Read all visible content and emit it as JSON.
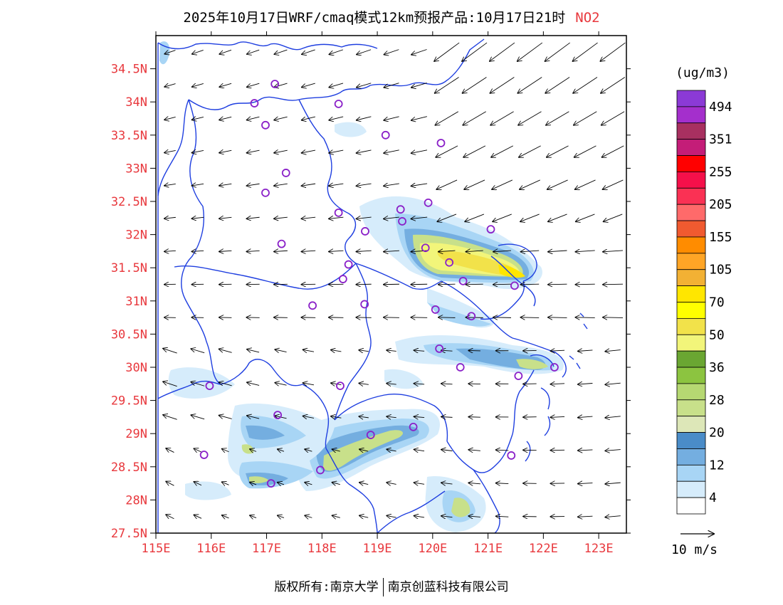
{
  "title": {
    "main": "2025年10月17日WRF/cmaq模式12km预报产品:10月17日21时",
    "pollutant": "NO2"
  },
  "axes": {
    "lat_labels": [
      "34.5N",
      "34N",
      "33.5N",
      "33N",
      "32.5N",
      "32N",
      "31.5N",
      "31N",
      "30.5N",
      "30N",
      "29.5N",
      "29N",
      "28.5N",
      "28N",
      "27.5N"
    ],
    "lon_labels": [
      "115E",
      "116E",
      "117E",
      "118E",
      "119E",
      "120E",
      "121E",
      "122E",
      "123E"
    ],
    "label_color": "#e8383d",
    "boundary_color": "#1f3fe0"
  },
  "colorbar": {
    "unit": "(ug/m3)",
    "labels": [
      "494",
      "351",
      "255",
      "205",
      "155",
      "105",
      "70",
      "50",
      "36",
      "28",
      "20",
      "12",
      "4"
    ],
    "colors": [
      "#8b3ad6",
      "#a42fcc",
      "#a83060",
      "#c41d78",
      "#ff0000",
      "#f5104a",
      "#fa3154",
      "#ff6a6a",
      "#f05a30",
      "#ff8c00",
      "#ffa526",
      "#f2b134",
      "#ffe600",
      "#ffff00",
      "#f2e24a",
      "#f2f57a",
      "#6aa632",
      "#8cc440",
      "#b6d872",
      "#c8e08a",
      "#dde7b8",
      "#4a8cc8",
      "#74aee0",
      "#a8d5f5",
      "#d6ecfb",
      "#ffffff"
    ]
  },
  "wind_legend": {
    "label": "10 m/s"
  },
  "footer": {
    "left": "版权所有:南京大学",
    "right": "南京创蓝科技有限公司"
  },
  "cities": [
    {
      "lon": 116.78,
      "lat": 33.98
    },
    {
      "lon": 117.15,
      "lat": 34.27
    },
    {
      "lon": 118.3,
      "lat": 33.97
    },
    {
      "lon": 116.98,
      "lat": 33.65
    },
    {
      "lon": 119.15,
      "lat": 33.5
    },
    {
      "lon": 120.15,
      "lat": 33.38
    },
    {
      "lon": 117.35,
      "lat": 32.93
    },
    {
      "lon": 116.98,
      "lat": 32.63
    },
    {
      "lon": 118.3,
      "lat": 32.33
    },
    {
      "lon": 119.42,
      "lat": 32.38
    },
    {
      "lon": 119.92,
      "lat": 32.48
    },
    {
      "lon": 119.45,
      "lat": 32.2
    },
    {
      "lon": 118.78,
      "lat": 32.05
    },
    {
      "lon": 121.05,
      "lat": 32.08
    },
    {
      "lon": 117.27,
      "lat": 31.86
    },
    {
      "lon": 119.87,
      "lat": 31.8
    },
    {
      "lon": 118.48,
      "lat": 31.55
    },
    {
      "lon": 120.3,
      "lat": 31.58
    },
    {
      "lon": 118.38,
      "lat": 31.33
    },
    {
      "lon": 120.55,
      "lat": 31.3
    },
    {
      "lon": 121.48,
      "lat": 31.23
    },
    {
      "lon": 117.83,
      "lat": 30.93
    },
    {
      "lon": 118.77,
      "lat": 30.95
    },
    {
      "lon": 120.05,
      "lat": 30.87
    },
    {
      "lon": 120.7,
      "lat": 30.77
    },
    {
      "lon": 120.12,
      "lat": 30.28
    },
    {
      "lon": 120.5,
      "lat": 30.0
    },
    {
      "lon": 121.55,
      "lat": 29.87
    },
    {
      "lon": 122.2,
      "lat": 30.0
    },
    {
      "lon": 115.97,
      "lat": 29.72
    },
    {
      "lon": 118.33,
      "lat": 29.72
    },
    {
      "lon": 117.2,
      "lat": 29.28
    },
    {
      "lon": 118.88,
      "lat": 28.98
    },
    {
      "lon": 119.65,
      "lat": 29.1
    },
    {
      "lon": 115.87,
      "lat": 28.68
    },
    {
      "lon": 117.97,
      "lat": 28.45
    },
    {
      "lon": 117.08,
      "lat": 28.25
    },
    {
      "lon": 121.42,
      "lat": 28.67
    }
  ]
}
